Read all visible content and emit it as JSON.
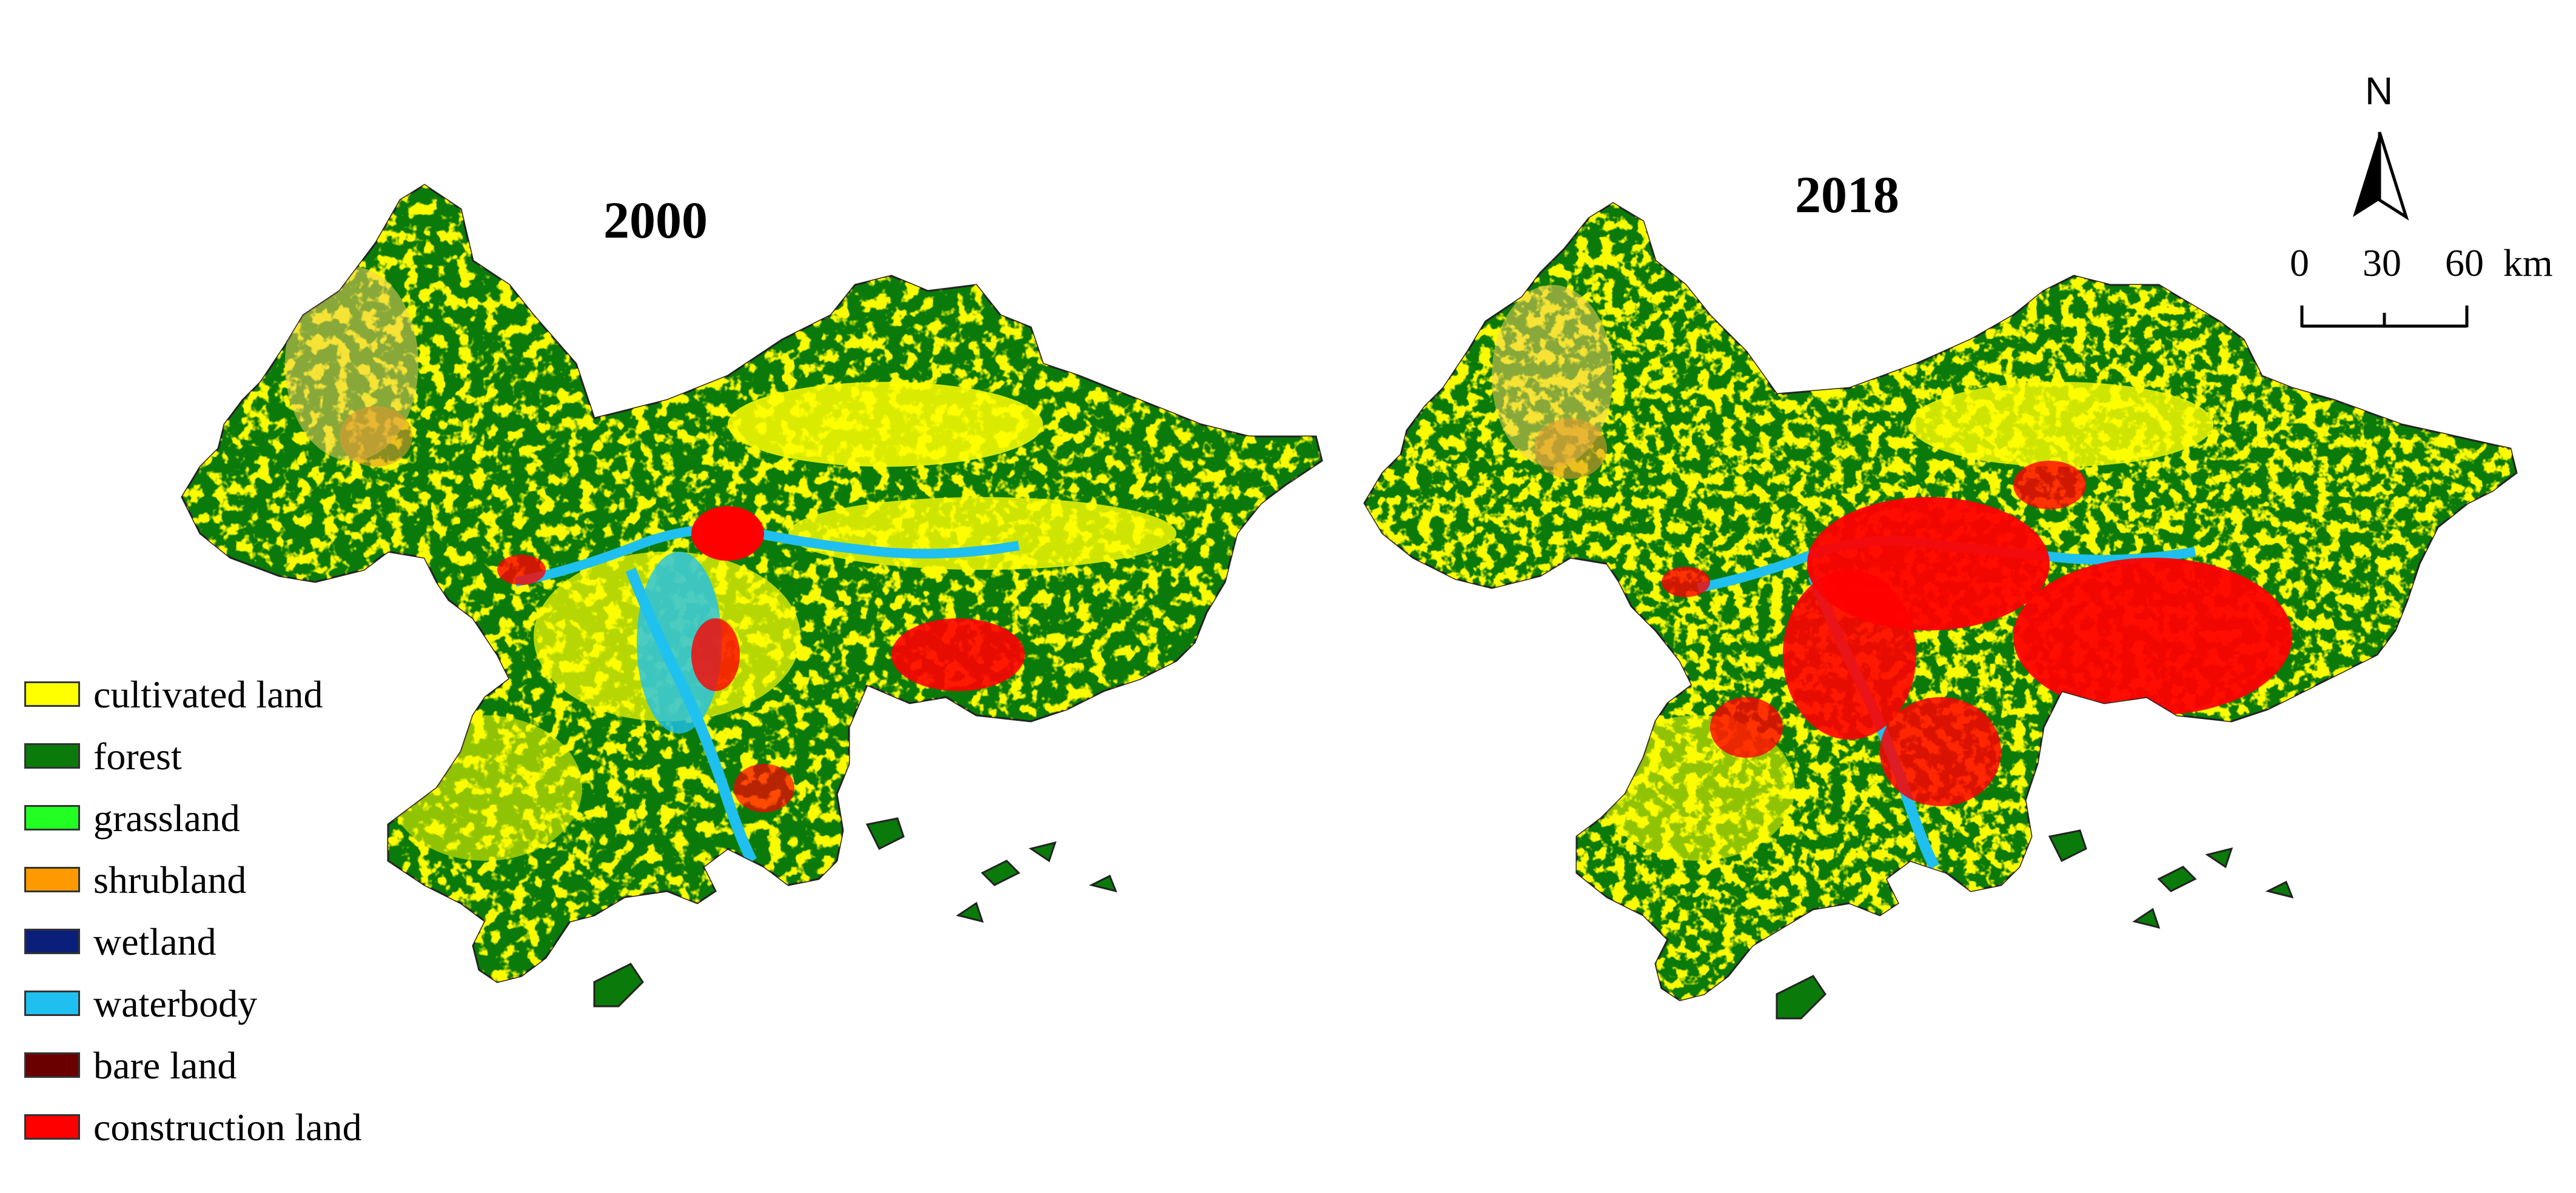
{
  "maps": [
    {
      "title": "2000",
      "year": 2000
    },
    {
      "title": "2018",
      "year": 2018
    }
  ],
  "legend": [
    {
      "label": "cultivated land",
      "color": "#ffff00"
    },
    {
      "label": "forest",
      "color": "#0a7a0a"
    },
    {
      "label": "grassland",
      "color": "#22ff22"
    },
    {
      "label": "shrubland",
      "color": "#ff9900"
    },
    {
      "label": "wetland",
      "color": "#0a1f7a"
    },
    {
      "label": "waterbody",
      "color": "#1fc0ef"
    },
    {
      "label": "bare land",
      "color": "#6b0000"
    },
    {
      "label": "construction land",
      "color": "#ff0000"
    }
  ],
  "north_arrow": {
    "label": "N"
  },
  "scale_bar": {
    "ticks": [
      "0",
      "30",
      "60"
    ],
    "unit": "km"
  }
}
